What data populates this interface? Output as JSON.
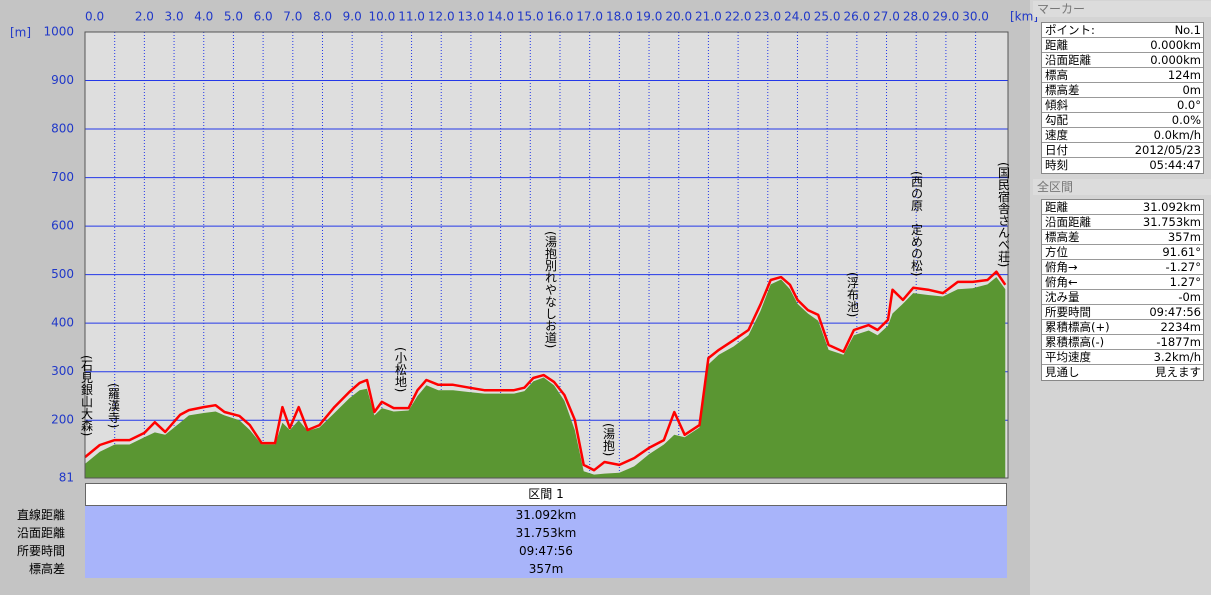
{
  "chart_data": {
    "type": "area",
    "x_unit": "[km]",
    "y_unit": "[m]",
    "x": [
      0,
      0.5,
      1.0,
      1.5,
      2.0,
      2.35,
      2.7,
      3.2,
      3.5,
      4.0,
      4.4,
      4.7,
      5.2,
      5.55,
      5.95,
      6.4,
      6.65,
      6.9,
      7.2,
      7.5,
      7.9,
      8.4,
      8.9,
      9.25,
      9.5,
      9.75,
      10.0,
      10.4,
      10.9,
      11.2,
      11.5,
      11.9,
      12.4,
      12.95,
      13.45,
      13.95,
      14.45,
      14.8,
      15.1,
      15.45,
      15.8,
      16.15,
      16.5,
      16.8,
      17.15,
      17.5,
      18.0,
      18.5,
      19.0,
      19.5,
      19.85,
      20.2,
      20.7,
      21.0,
      21.35,
      21.85,
      22.35,
      22.75,
      23.1,
      23.45,
      23.75,
      24.0,
      24.35,
      24.7,
      25.05,
      25.55,
      25.9,
      26.4,
      26.7,
      27.05,
      27.2,
      27.55,
      27.9,
      28.4,
      28.9,
      29.4,
      29.9,
      30.4,
      30.7,
      31.0
    ],
    "xlim": [
      0,
      31.092
    ],
    "xticks": [
      {
        "value": 0,
        "label": "0.0"
      },
      {
        "value": 1,
        "label": null
      },
      {
        "value": 2,
        "label": "2.0"
      },
      {
        "value": 3,
        "label": "3.0"
      },
      {
        "value": 4,
        "label": "4.0"
      },
      {
        "value": 5,
        "label": "5.0"
      },
      {
        "value": 6,
        "label": "6.0"
      },
      {
        "value": 7,
        "label": "7.0"
      },
      {
        "value": 8,
        "label": "8.0"
      },
      {
        "value": 9,
        "label": "9.0"
      },
      {
        "value": 10,
        "label": "10.0"
      },
      {
        "value": 11,
        "label": "11.0"
      },
      {
        "value": 12,
        "label": "12.0"
      },
      {
        "value": 13,
        "label": "13.0"
      },
      {
        "value": 14,
        "label": "14.0"
      },
      {
        "value": 15,
        "label": "15.0"
      },
      {
        "value": 16,
        "label": "16.0"
      },
      {
        "value": 17,
        "label": "17.0"
      },
      {
        "value": 18,
        "label": "18.0"
      },
      {
        "value": 19,
        "label": "19.0"
      },
      {
        "value": 20,
        "label": "20.0"
      },
      {
        "value": 21,
        "label": "21.0"
      },
      {
        "value": 22,
        "label": "22.0"
      },
      {
        "value": 23,
        "label": "23.0"
      },
      {
        "value": 24,
        "label": "24.0"
      },
      {
        "value": 25,
        "label": "25.0"
      },
      {
        "value": 26,
        "label": "26.0"
      },
      {
        "value": 27,
        "label": "27.0"
      },
      {
        "value": 28,
        "label": "28.0"
      },
      {
        "value": 29,
        "label": "29.0"
      },
      {
        "value": 30,
        "label": "30.0"
      }
    ],
    "ylim": [
      81,
      1000
    ],
    "yticks": [
      81,
      200,
      300,
      400,
      500,
      600,
      700,
      800,
      900,
      1000
    ],
    "grid": true,
    "series": [
      {
        "color": "#5a9632",
        "fill": true,
        "values": [
          110,
          135,
          150,
          150,
          165,
          175,
          170,
          195,
          210,
          215,
          218,
          210,
          200,
          180,
          150,
          150,
          195,
          180,
          200,
          178,
          185,
          215,
          245,
          262,
          265,
          210,
          225,
          218,
          220,
          250,
          272,
          262,
          262,
          258,
          255,
          255,
          255,
          260,
          280,
          288,
          272,
          240,
          180,
          95,
          88,
          90,
          92,
          105,
          130,
          150,
          170,
          165,
          185,
          315,
          335,
          352,
          375,
          425,
          480,
          490,
          470,
          440,
          420,
          405,
          345,
          335,
          375,
          385,
          375,
          395,
          420,
          440,
          462,
          458,
          455,
          470,
          472,
          480,
          495,
          470
        ]
      },
      {
        "color": "#ff0000",
        "fill": false,
        "values": [
          124,
          149,
          159,
          159,
          174,
          196,
          176,
          211,
          221,
          227,
          231,
          217,
          209,
          190,
          153,
          153,
          227,
          184,
          227,
          180,
          190,
          227,
          258,
          277,
          283,
          217,
          238,
          225,
          225,
          262,
          283,
          273,
          273,
          267,
          262,
          262,
          262,
          267,
          287,
          293,
          279,
          252,
          201,
          108,
          97,
          114,
          108,
          122,
          143,
          159,
          217,
          170,
          190,
          328,
          345,
          365,
          386,
          438,
          489,
          495,
          479,
          448,
          427,
          417,
          355,
          341,
          386,
          396,
          386,
          407,
          469,
          448,
          473,
          469,
          462,
          485,
          485,
          489,
          506,
          479
        ]
      }
    ],
    "annotations": [
      "(石見銀山大森)",
      "(羅漢寺)",
      "(小松地)",
      "(湯抱別れやなしお道)",
      "(湯抱)",
      "(浮布池)",
      "(西の原　定めの松)",
      "(国民宿舎さんべ荘)"
    ]
  },
  "marker_panel": {
    "title": "マーカー",
    "rows": [
      [
        "ポイント:",
        "No.1"
      ],
      [
        "距離",
        "0.000km"
      ],
      [
        "沿面距離",
        "0.000km"
      ],
      [
        "標高",
        "124m"
      ],
      [
        "標高差",
        "0m"
      ],
      [
        "傾斜",
        "0.0°"
      ],
      [
        "勾配",
        "0.0%"
      ],
      [
        "速度",
        "0.0km/h"
      ],
      [
        "日付",
        "2012/05/23"
      ],
      [
        "時刻",
        "05:44:47"
      ]
    ]
  },
  "total_panel": {
    "title": "全区間",
    "rows": [
      [
        "距離",
        "31.092km"
      ],
      [
        "沿面距離",
        "31.753km"
      ],
      [
        "標高差",
        "357m"
      ],
      [
        "方位",
        "91.61°"
      ],
      [
        "俯角→",
        "-1.27°"
      ],
      [
        "俯角←",
        "1.27°"
      ],
      [
        "沈み量",
        "-0m"
      ],
      [
        "所要時間",
        "09:47:56"
      ],
      [
        "累積標高(+)",
        "2234m"
      ],
      [
        "累積標高(-)",
        "-1877m"
      ],
      [
        "平均速度",
        "3.2km/h"
      ],
      [
        "見通し",
        "見えます"
      ]
    ]
  },
  "section_table": {
    "header": "区間 1",
    "rows": [
      [
        "直線距離",
        "31.092km"
      ],
      [
        "沿面距離",
        "31.753km"
      ],
      [
        "所要時間",
        "09:47:56"
      ],
      [
        "標高差",
        "357m"
      ]
    ]
  }
}
